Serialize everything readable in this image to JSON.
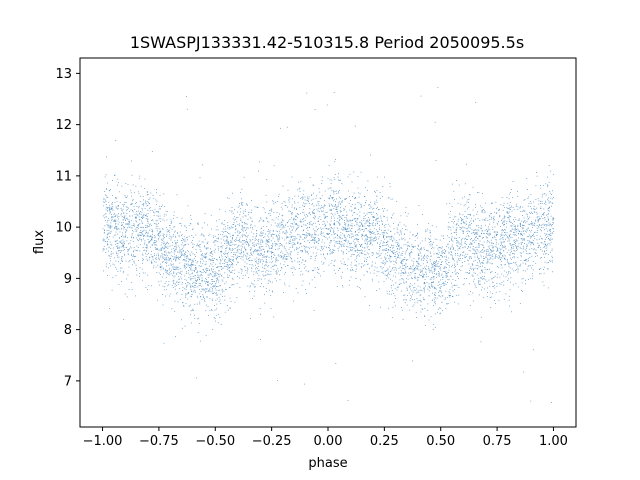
{
  "chart_data": {
    "type": "scatter",
    "title": "1SWASPJ133331.42-510315.8 Period 2050095.5s",
    "xlabel": "phase",
    "ylabel": "flux",
    "xlim": [
      -1.1,
      1.1
    ],
    "ylim": [
      6.1,
      13.3
    ],
    "xticks": [
      -1.0,
      -0.75,
      -0.5,
      -0.25,
      0.0,
      0.25,
      0.5,
      0.75,
      1.0
    ],
    "xtick_labels": [
      "−1.00",
      "−0.75",
      "−0.50",
      "−0.25",
      "0.00",
      "0.25",
      "0.50",
      "0.75",
      "1.00"
    ],
    "yticks": [
      7,
      8,
      9,
      10,
      11,
      12,
      13
    ],
    "ytick_labels": [
      "7",
      "8",
      "9",
      "10",
      "11",
      "12",
      "13"
    ],
    "grid": false,
    "marker_color": "#4c8bbf",
    "series": [
      {
        "x_range": [
          -1.0,
          1.0
        ],
        "values_profile": [
          {
            "phase": -1.0,
            "flux": 10.1
          },
          {
            "phase": -0.9,
            "flux": 9.9
          },
          {
            "phase": -0.8,
            "flux": 10.0
          },
          {
            "phase": -0.7,
            "flux": 9.4
          },
          {
            "phase": -0.6,
            "flux": 9.2
          },
          {
            "phase": -0.5,
            "flux": 9.1
          },
          {
            "phase": -0.4,
            "flux": 9.8
          },
          {
            "phase": -0.3,
            "flux": 9.5
          },
          {
            "phase": -0.2,
            "flux": 9.8
          },
          {
            "phase": -0.1,
            "flux": 9.9
          },
          {
            "phase": 0.0,
            "flux": 10.1
          },
          {
            "phase": 0.1,
            "flux": 9.9
          },
          {
            "phase": 0.2,
            "flux": 10.0
          },
          {
            "phase": 0.3,
            "flux": 9.4
          },
          {
            "phase": 0.4,
            "flux": 9.2
          },
          {
            "phase": 0.5,
            "flux": 9.1
          },
          {
            "phase": 0.6,
            "flux": 9.8
          },
          {
            "phase": 0.7,
            "flux": 9.5
          },
          {
            "phase": 0.8,
            "flux": 9.8
          },
          {
            "phase": 0.9,
            "flux": 9.9
          },
          {
            "phase": 1.0,
            "flux": 10.1
          }
        ],
        "typical_spread": 0.45,
        "outlier_range": [
          6.5,
          12.9
        ]
      }
    ]
  }
}
